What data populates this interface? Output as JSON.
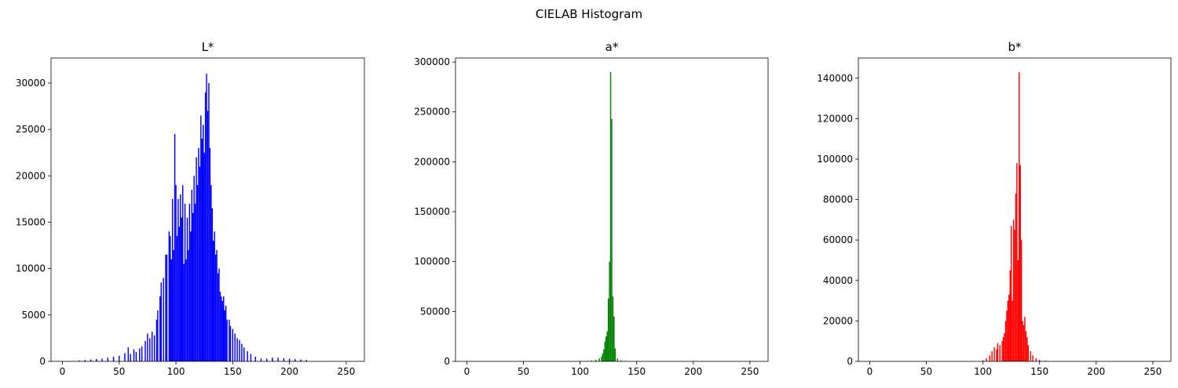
{
  "figure": {
    "title": "CIELAB Histogram"
  },
  "chart_data": [
    {
      "type": "bar",
      "title": "L*",
      "xlabel": "",
      "ylabel": "",
      "color": "#0000ff",
      "xlim": [
        -10,
        266
      ],
      "ylim": [
        0,
        32700
      ],
      "xticks": [
        0,
        50,
        100,
        150,
        200,
        250
      ],
      "yticks": [
        0,
        5000,
        10000,
        15000,
        20000,
        25000,
        30000
      ],
      "grid": false,
      "bins": [
        {
          "x": 10,
          "y": 50
        },
        {
          "x": 15,
          "y": 100
        },
        {
          "x": 20,
          "y": 150
        },
        {
          "x": 25,
          "y": 200
        },
        {
          "x": 30,
          "y": 250
        },
        {
          "x": 35,
          "y": 300
        },
        {
          "x": 40,
          "y": 400
        },
        {
          "x": 45,
          "y": 500
        },
        {
          "x": 50,
          "y": 600
        },
        {
          "x": 55,
          "y": 900
        },
        {
          "x": 58,
          "y": 1500
        },
        {
          "x": 60,
          "y": 800
        },
        {
          "x": 63,
          "y": 1300
        },
        {
          "x": 65,
          "y": 1000
        },
        {
          "x": 68,
          "y": 1400
        },
        {
          "x": 70,
          "y": 1600
        },
        {
          "x": 73,
          "y": 2200
        },
        {
          "x": 75,
          "y": 3000
        },
        {
          "x": 77,
          "y": 2500
        },
        {
          "x": 79,
          "y": 3200
        },
        {
          "x": 81,
          "y": 2800
        },
        {
          "x": 83,
          "y": 4500
        },
        {
          "x": 84,
          "y": 5500
        },
        {
          "x": 86,
          "y": 7000
        },
        {
          "x": 87,
          "y": 8500
        },
        {
          "x": 89,
          "y": 9000
        },
        {
          "x": 91,
          "y": 11500
        },
        {
          "x": 92,
          "y": 11500
        },
        {
          "x": 94,
          "y": 14000
        },
        {
          "x": 95,
          "y": 13500
        },
        {
          "x": 96,
          "y": 11000
        },
        {
          "x": 97,
          "y": 17500
        },
        {
          "x": 98,
          "y": 12000
        },
        {
          "x": 99,
          "y": 24500
        },
        {
          "x": 100,
          "y": 19000
        },
        {
          "x": 101,
          "y": 13500
        },
        {
          "x": 102,
          "y": 17500
        },
        {
          "x": 103,
          "y": 14500
        },
        {
          "x": 104,
          "y": 18000
        },
        {
          "x": 105,
          "y": 15500
        },
        {
          "x": 106,
          "y": 19000
        },
        {
          "x": 107,
          "y": 10500
        },
        {
          "x": 108,
          "y": 17000
        },
        {
          "x": 109,
          "y": 11000
        },
        {
          "x": 110,
          "y": 15500
        },
        {
          "x": 111,
          "y": 12000
        },
        {
          "x": 112,
          "y": 17000
        },
        {
          "x": 113,
          "y": 14000
        },
        {
          "x": 114,
          "y": 18500
        },
        {
          "x": 115,
          "y": 16000
        },
        {
          "x": 116,
          "y": 20000
        },
        {
          "x": 117,
          "y": 17000
        },
        {
          "x": 118,
          "y": 22000
        },
        {
          "x": 119,
          "y": 19000
        },
        {
          "x": 120,
          "y": 23000
        },
        {
          "x": 121,
          "y": 21000
        },
        {
          "x": 122,
          "y": 26500
        },
        {
          "x": 123,
          "y": 24000
        },
        {
          "x": 124,
          "y": 25500
        },
        {
          "x": 125,
          "y": 22500
        },
        {
          "x": 126,
          "y": 29000
        },
        {
          "x": 127,
          "y": 31000
        },
        {
          "x": 128,
          "y": 27000
        },
        {
          "x": 129,
          "y": 30000
        },
        {
          "x": 130,
          "y": 23000
        },
        {
          "x": 131,
          "y": 19000
        },
        {
          "x": 132,
          "y": 16500
        },
        {
          "x": 133,
          "y": 13000
        },
        {
          "x": 134,
          "y": 14000
        },
        {
          "x": 135,
          "y": 11500
        },
        {
          "x": 136,
          "y": 12000
        },
        {
          "x": 137,
          "y": 9500
        },
        {
          "x": 138,
          "y": 10000
        },
        {
          "x": 139,
          "y": 7500
        },
        {
          "x": 140,
          "y": 7000
        },
        {
          "x": 141,
          "y": 6500
        },
        {
          "x": 142,
          "y": 7000
        },
        {
          "x": 143,
          "y": 5500
        },
        {
          "x": 144,
          "y": 6000
        },
        {
          "x": 145,
          "y": 4500
        },
        {
          "x": 147,
          "y": 4500
        },
        {
          "x": 148,
          "y": 3800
        },
        {
          "x": 150,
          "y": 3500
        },
        {
          "x": 152,
          "y": 3000
        },
        {
          "x": 154,
          "y": 2500
        },
        {
          "x": 156,
          "y": 2300
        },
        {
          "x": 158,
          "y": 1900
        },
        {
          "x": 160,
          "y": 1500
        },
        {
          "x": 163,
          "y": 1100
        },
        {
          "x": 166,
          "y": 800
        },
        {
          "x": 170,
          "y": 500
        },
        {
          "x": 175,
          "y": 300
        },
        {
          "x": 180,
          "y": 300
        },
        {
          "x": 185,
          "y": 400
        },
        {
          "x": 190,
          "y": 400
        },
        {
          "x": 195,
          "y": 350
        },
        {
          "x": 200,
          "y": 300
        },
        {
          "x": 205,
          "y": 250
        },
        {
          "x": 210,
          "y": 200
        },
        {
          "x": 215,
          "y": 150
        }
      ]
    },
    {
      "type": "bar",
      "title": "a*",
      "xlabel": "",
      "ylabel": "",
      "color": "#008000",
      "xlim": [
        -10,
        266
      ],
      "ylim": [
        0,
        304000
      ],
      "xticks": [
        0,
        50,
        100,
        150,
        200,
        250
      ],
      "yticks": [
        0,
        50000,
        100000,
        150000,
        200000,
        250000,
        300000
      ],
      "grid": false,
      "bins": [
        {
          "x": 0,
          "y": 200
        },
        {
          "x": 50,
          "y": 200
        },
        {
          "x": 100,
          "y": 300
        },
        {
          "x": 106,
          "y": 500
        },
        {
          "x": 110,
          "y": 800
        },
        {
          "x": 114,
          "y": 1500
        },
        {
          "x": 117,
          "y": 3000
        },
        {
          "x": 119,
          "y": 5000
        },
        {
          "x": 120,
          "y": 8000
        },
        {
          "x": 121,
          "y": 12000
        },
        {
          "x": 122,
          "y": 20000
        },
        {
          "x": 123,
          "y": 25000
        },
        {
          "x": 124,
          "y": 30000
        },
        {
          "x": 125,
          "y": 63000
        },
        {
          "x": 126,
          "y": 100000
        },
        {
          "x": 127,
          "y": 290000
        },
        {
          "x": 128,
          "y": 243000
        },
        {
          "x": 129,
          "y": 65000
        },
        {
          "x": 130,
          "y": 45000
        },
        {
          "x": 131,
          "y": 13000
        },
        {
          "x": 133,
          "y": 3000
        },
        {
          "x": 136,
          "y": 1000
        },
        {
          "x": 140,
          "y": 500
        },
        {
          "x": 150,
          "y": 300
        },
        {
          "x": 200,
          "y": 200
        },
        {
          "x": 250,
          "y": 100
        }
      ]
    },
    {
      "type": "bar",
      "title": "b*",
      "xlabel": "",
      "ylabel": "",
      "color": "#ff0000",
      "xlim": [
        -10,
        266
      ],
      "ylim": [
        0,
        150000
      ],
      "xticks": [
        0,
        50,
        100,
        150,
        200,
        250
      ],
      "yticks": [
        0,
        20000,
        40000,
        60000,
        80000,
        100000,
        120000,
        140000
      ],
      "grid": false,
      "bins": [
        {
          "x": 0,
          "y": 200
        },
        {
          "x": 50,
          "y": 200
        },
        {
          "x": 100,
          "y": 500
        },
        {
          "x": 103,
          "y": 1500
        },
        {
          "x": 106,
          "y": 3000
        },
        {
          "x": 108,
          "y": 5000
        },
        {
          "x": 110,
          "y": 7000
        },
        {
          "x": 112,
          "y": 6000
        },
        {
          "x": 113,
          "y": 9000
        },
        {
          "x": 115,
          "y": 8000
        },
        {
          "x": 117,
          "y": 10000
        },
        {
          "x": 118,
          "y": 12000
        },
        {
          "x": 119,
          "y": 14000
        },
        {
          "x": 120,
          "y": 20000
        },
        {
          "x": 121,
          "y": 25000
        },
        {
          "x": 122,
          "y": 30000
        },
        {
          "x": 123,
          "y": 33000
        },
        {
          "x": 124,
          "y": 45000
        },
        {
          "x": 125,
          "y": 67000
        },
        {
          "x": 126,
          "y": 30000
        },
        {
          "x": 127,
          "y": 70000
        },
        {
          "x": 128,
          "y": 65000
        },
        {
          "x": 129,
          "y": 83000
        },
        {
          "x": 130,
          "y": 98000
        },
        {
          "x": 131,
          "y": 50000
        },
        {
          "x": 132,
          "y": 143000
        },
        {
          "x": 133,
          "y": 97000
        },
        {
          "x": 134,
          "y": 60000
        },
        {
          "x": 135,
          "y": 20000
        },
        {
          "x": 136,
          "y": 18000
        },
        {
          "x": 137,
          "y": 22000
        },
        {
          "x": 138,
          "y": 15000
        },
        {
          "x": 139,
          "y": 12000
        },
        {
          "x": 140,
          "y": 8000
        },
        {
          "x": 142,
          "y": 5000
        },
        {
          "x": 144,
          "y": 3000
        },
        {
          "x": 147,
          "y": 1500
        },
        {
          "x": 150,
          "y": 800
        },
        {
          "x": 155,
          "y": 400
        },
        {
          "x": 200,
          "y": 200
        },
        {
          "x": 250,
          "y": 100
        }
      ]
    }
  ]
}
